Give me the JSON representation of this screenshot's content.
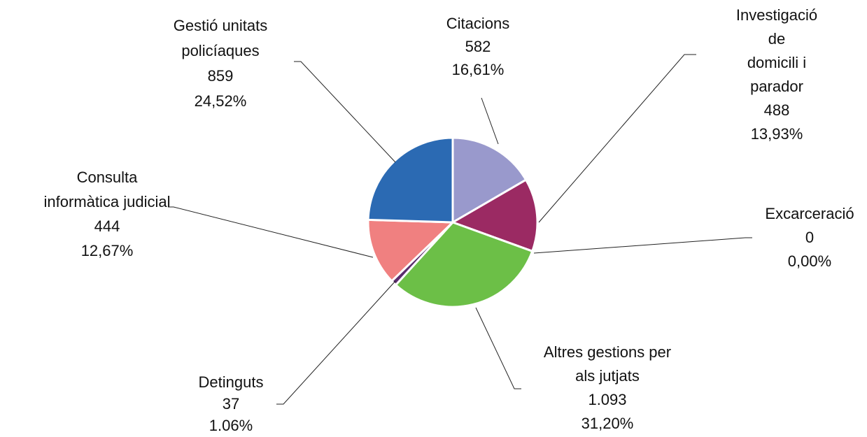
{
  "chart_data": {
    "type": "pie",
    "categories": [
      "Citacions",
      "Investigació de\ndomicili i parador",
      "Excarceració",
      "Altres gestions per\nals jutjats",
      "Detinguts",
      "Consulta\ninformàtica judicial",
      "Gestió unitats\npolicíaques"
    ],
    "values": [
      582,
      488,
      0,
      1093,
      37,
      444,
      859
    ],
    "value_labels": [
      "582",
      "488",
      "0",
      "1.093",
      "37",
      "444",
      "859"
    ],
    "percents": [
      16.61,
      13.93,
      0,
      31.2,
      1.06,
      12.67,
      24.52
    ],
    "percent_labels": [
      "16,61%",
      "13,93%",
      "0,00%",
      "31,20%",
      "1.06%",
      "12,67%",
      "24,52%"
    ],
    "colors": [
      "#9999cc",
      "#9b2a63",
      "#ffffff",
      "#6cbf47",
      "#5b2d6e",
      "#f08080",
      "#2b6ab3"
    ]
  }
}
